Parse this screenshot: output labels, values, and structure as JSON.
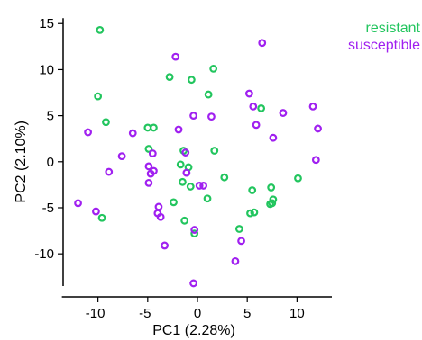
{
  "chart_data": {
    "type": "scatter",
    "title": "",
    "xlabel": "PC1 (2.28%)",
    "ylabel": "PC2 (2.10%)",
    "xlim": [
      -13.5,
      13.5
    ],
    "ylim": [
      -13.5,
      16
    ],
    "xticks": [
      -10,
      -5,
      0,
      5,
      10
    ],
    "yticks": [
      -10,
      -5,
      0,
      5,
      10,
      15
    ],
    "grid": false,
    "legend_position": "top-right",
    "series": [
      {
        "name": "resistant",
        "color": "#22c55e",
        "points": [
          [
            -9.8,
            14.3
          ],
          [
            1.6,
            10.1
          ],
          [
            -2.8,
            9.2
          ],
          [
            -0.6,
            8.9
          ],
          [
            1.1,
            7.3
          ],
          [
            -10.0,
            7.1
          ],
          [
            6.4,
            5.8
          ],
          [
            -9.2,
            4.3
          ],
          [
            -5.0,
            3.7
          ],
          [
            -4.4,
            3.7
          ],
          [
            -4.9,
            1.4
          ],
          [
            -1.4,
            1.2
          ],
          [
            1.7,
            1.2
          ],
          [
            -1.7,
            -0.3
          ],
          [
            -0.9,
            -0.6
          ],
          [
            10.1,
            -1.8
          ],
          [
            2.7,
            -1.7
          ],
          [
            -1.5,
            -2.2
          ],
          [
            -0.7,
            -2.7
          ],
          [
            7.4,
            -2.8
          ],
          [
            5.5,
            -3.1
          ],
          [
            1.0,
            -4.0
          ],
          [
            -2.4,
            -4.4
          ],
          [
            7.6,
            -4.1
          ],
          [
            7.5,
            -4.5
          ],
          [
            7.3,
            -4.6
          ],
          [
            5.7,
            -5.5
          ],
          [
            5.3,
            -5.6
          ],
          [
            -9.6,
            -6.1
          ],
          [
            -1.3,
            -6.4
          ],
          [
            4.2,
            -7.3
          ],
          [
            -0.3,
            -7.8
          ]
        ]
      },
      {
        "name": "susceptible",
        "color": "#a020f0",
        "points": [
          [
            -2.2,
            11.4
          ],
          [
            6.5,
            12.9
          ],
          [
            5.2,
            7.4
          ],
          [
            5.6,
            6.0
          ],
          [
            11.6,
            6.0
          ],
          [
            8.6,
            5.3
          ],
          [
            -0.4,
            5.0
          ],
          [
            1.4,
            4.9
          ],
          [
            5.9,
            4.0
          ],
          [
            -1.9,
            3.5
          ],
          [
            12.1,
            3.6
          ],
          [
            -11.0,
            3.2
          ],
          [
            -6.5,
            3.1
          ],
          [
            7.6,
            2.6
          ],
          [
            -1.2,
            1.0
          ],
          [
            -4.5,
            0.9
          ],
          [
            -7.6,
            0.6
          ],
          [
            -4.9,
            -0.5
          ],
          [
            -4.4,
            -1.0
          ],
          [
            -4.7,
            -1.3
          ],
          [
            -1.1,
            -1.2
          ],
          [
            -8.9,
            -1.1
          ],
          [
            -4.9,
            -2.3
          ],
          [
            0.2,
            -2.6
          ],
          [
            0.6,
            -2.6
          ],
          [
            11.9,
            0.2
          ],
          [
            -12.0,
            -4.5
          ],
          [
            -10.2,
            -5.4
          ],
          [
            -3.9,
            -4.9
          ],
          [
            -4.0,
            -5.6
          ],
          [
            -3.7,
            -6.0
          ],
          [
            -0.3,
            -7.4
          ],
          [
            4.4,
            -8.6
          ],
          [
            -3.3,
            -9.1
          ],
          [
            3.8,
            -10.8
          ],
          [
            -0.4,
            -13.2
          ]
        ]
      }
    ]
  }
}
